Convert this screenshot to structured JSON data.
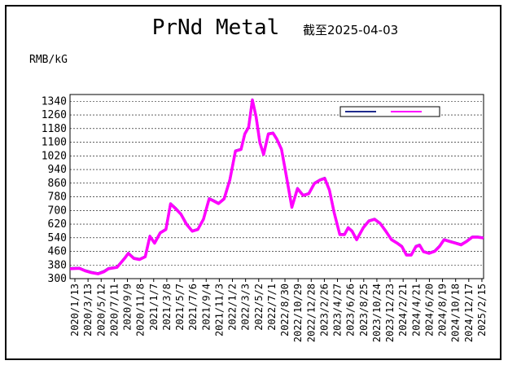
{
  "header": {
    "title": "PrNd Metal",
    "subtitle": "截至2025-04-03"
  },
  "chart_data": {
    "type": "line",
    "title": "PrNd Metal",
    "subtitle": "截至2025-04-03",
    "ylabel": "RMB/kG",
    "xlabel": "",
    "ylim": [
      300,
      1380
    ],
    "yticks": [
      300,
      380,
      460,
      540,
      620,
      700,
      780,
      860,
      940,
      1020,
      1100,
      1180,
      1260,
      1340
    ],
    "xtick_labels": [
      "2020/1/13",
      "2020/3/13",
      "2020/5/12",
      "2020/7/11",
      "2020/9/9",
      "2020/11/8",
      "2021/1/7",
      "2021/3/8",
      "2021/5/7",
      "2021/7/6",
      "2021/9/4",
      "2021/11/3",
      "2022/1/2",
      "2022/3/3",
      "2022/5/2",
      "2022/7/1",
      "2022/8/30",
      "2022/10/29",
      "2022/12/28",
      "2023/2/26",
      "2023/4/27",
      "2023/6/26",
      "2023/8/25",
      "2023/10/24",
      "2023/12/23",
      "2024/2/21",
      "2024/4/21",
      "2024/6/20",
      "2024/8/19",
      "2024/10/18",
      "2024/12/17",
      "2025/2/15"
    ],
    "grid": true,
    "legend_placement": "top-right",
    "series": [
      {
        "color": "#1f2a8c",
        "values": [
          [
            0,
            360
          ],
          [
            1.0,
            362
          ],
          [
            1.6,
            348
          ],
          [
            2.2,
            338
          ],
          [
            3.0,
            330
          ],
          [
            3.6,
            343
          ],
          [
            4.1,
            360
          ],
          [
            5.0,
            368
          ],
          [
            5.8,
            420
          ],
          [
            6.2,
            450
          ],
          [
            6.8,
            420
          ],
          [
            7.4,
            414
          ],
          [
            8.0,
            430
          ],
          [
            8.5,
            550
          ],
          [
            9.0,
            510
          ],
          [
            9.6,
            570
          ],
          [
            10.2,
            590
          ],
          [
            10.7,
            740
          ],
          [
            11.2,
            715
          ],
          [
            11.8,
            680
          ],
          [
            12.4,
            620
          ],
          [
            13.0,
            580
          ],
          [
            13.6,
            590
          ],
          [
            14.2,
            650
          ],
          [
            14.8,
            770
          ],
          [
            15.2,
            760
          ],
          [
            15.8,
            742
          ],
          [
            16.4,
            770
          ],
          [
            17.0,
            880
          ],
          [
            17.6,
            1050
          ],
          [
            18.2,
            1060
          ],
          [
            18.6,
            1150
          ],
          [
            19.0,
            1190
          ],
          [
            19.4,
            1350
          ],
          [
            19.8,
            1250
          ],
          [
            20.2,
            1100
          ],
          [
            20.6,
            1030
          ],
          [
            21.1,
            1150
          ],
          [
            21.6,
            1155
          ],
          [
            22.0,
            1120
          ],
          [
            22.5,
            1060
          ],
          [
            23.0,
            910
          ],
          [
            23.6,
            720
          ],
          [
            24.2,
            830
          ],
          [
            24.8,
            790
          ],
          [
            25.4,
            800
          ],
          [
            26.0,
            860
          ],
          [
            26.6,
            880
          ],
          [
            27.1,
            890
          ],
          [
            27.6,
            820
          ],
          [
            28.1,
            690
          ],
          [
            28.7,
            560
          ],
          [
            29.2,
            560
          ],
          [
            29.6,
            600
          ],
          [
            30.0,
            580
          ],
          [
            30.5,
            530
          ],
          [
            31.2,
            600
          ],
          [
            31.8,
            640
          ],
          [
            32.4,
            650
          ],
          [
            33.0,
            625
          ],
          [
            33.6,
            580
          ],
          [
            34.2,
            530
          ],
          [
            34.8,
            510
          ],
          [
            35.3,
            490
          ],
          [
            35.8,
            440
          ],
          [
            36.3,
            440
          ],
          [
            36.8,
            490
          ],
          [
            37.2,
            498
          ],
          [
            37.6,
            460
          ],
          [
            38.2,
            450
          ],
          [
            38.8,
            462
          ],
          [
            39.3,
            490
          ],
          [
            39.8,
            530
          ],
          [
            40.4,
            520
          ],
          [
            41.0,
            510
          ],
          [
            41.6,
            500
          ],
          [
            42.2,
            520
          ],
          [
            42.8,
            545
          ],
          [
            43.4,
            545
          ],
          [
            44.0,
            540
          ]
        ]
      },
      {
        "color": "#ff00ff",
        "values": [
          [
            0,
            358
          ],
          [
            1.0,
            360
          ],
          [
            1.6,
            346
          ],
          [
            2.2,
            336
          ],
          [
            3.0,
            328
          ],
          [
            3.6,
            340
          ],
          [
            4.1,
            358
          ],
          [
            5.0,
            366
          ],
          [
            5.8,
            418
          ],
          [
            6.2,
            448
          ],
          [
            6.8,
            418
          ],
          [
            7.4,
            412
          ],
          [
            8.0,
            428
          ],
          [
            8.5,
            548
          ],
          [
            9.0,
            508
          ],
          [
            9.6,
            568
          ],
          [
            10.2,
            588
          ],
          [
            10.7,
            738
          ],
          [
            11.2,
            712
          ],
          [
            11.8,
            678
          ],
          [
            12.4,
            618
          ],
          [
            13.0,
            578
          ],
          [
            13.6,
            588
          ],
          [
            14.2,
            648
          ],
          [
            14.8,
            768
          ],
          [
            15.2,
            758
          ],
          [
            15.8,
            740
          ],
          [
            16.4,
            768
          ],
          [
            17.0,
            878
          ],
          [
            17.6,
            1048
          ],
          [
            18.2,
            1058
          ],
          [
            18.6,
            1148
          ],
          [
            19.0,
            1188
          ],
          [
            19.4,
            1348
          ],
          [
            19.8,
            1248
          ],
          [
            20.2,
            1098
          ],
          [
            20.6,
            1028
          ],
          [
            21.1,
            1148
          ],
          [
            21.6,
            1153
          ],
          [
            22.0,
            1118
          ],
          [
            22.5,
            1058
          ],
          [
            23.0,
            908
          ],
          [
            23.6,
            718
          ],
          [
            24.2,
            828
          ],
          [
            24.8,
            788
          ],
          [
            25.4,
            798
          ],
          [
            26.0,
            858
          ],
          [
            26.6,
            878
          ],
          [
            27.1,
            888
          ],
          [
            27.6,
            818
          ],
          [
            28.1,
            688
          ],
          [
            28.7,
            558
          ],
          [
            29.2,
            558
          ],
          [
            29.6,
            598
          ],
          [
            30.0,
            578
          ],
          [
            30.5,
            528
          ],
          [
            31.2,
            598
          ],
          [
            31.8,
            638
          ],
          [
            32.4,
            648
          ],
          [
            33.0,
            623
          ],
          [
            33.6,
            578
          ],
          [
            34.2,
            528
          ],
          [
            34.8,
            508
          ],
          [
            35.3,
            488
          ],
          [
            35.8,
            438
          ],
          [
            36.3,
            438
          ],
          [
            36.8,
            488
          ],
          [
            37.2,
            496
          ],
          [
            37.6,
            458
          ],
          [
            38.2,
            448
          ],
          [
            38.8,
            460
          ],
          [
            39.3,
            488
          ],
          [
            39.8,
            528
          ],
          [
            40.4,
            518
          ],
          [
            41.0,
            508
          ],
          [
            41.6,
            498
          ],
          [
            42.2,
            518
          ],
          [
            42.8,
            543
          ],
          [
            43.4,
            543
          ],
          [
            44.0,
            538
          ]
        ]
      }
    ]
  }
}
